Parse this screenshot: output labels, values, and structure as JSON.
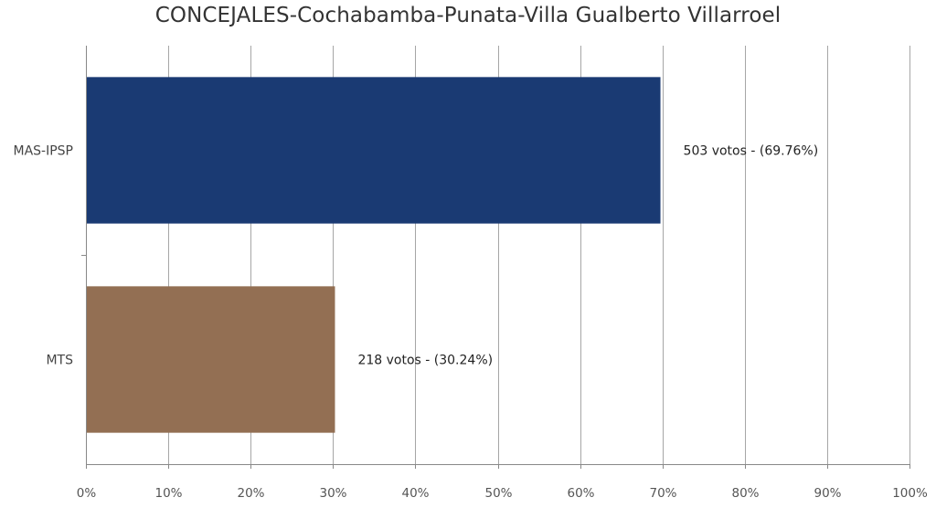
{
  "chart_data": {
    "type": "bar",
    "orientation": "horizontal",
    "title": "CONCEJALES-Cochabamba-Punata-Villa Gualberto Villarroel",
    "categories": [
      "MAS-IPSP",
      "MTS"
    ],
    "values": [
      69.76,
      30.24
    ],
    "votes": [
      503,
      218
    ],
    "data_labels": [
      "503 votos - (69.76%)",
      "218 votos - (30.24%)"
    ],
    "colors": [
      "#1a3a73",
      "#936f53"
    ],
    "xlim": [
      0,
      100
    ],
    "x_ticks": [
      0,
      10,
      20,
      30,
      40,
      50,
      60,
      70,
      80,
      90,
      100
    ],
    "x_tick_labels": [
      "0%",
      "10%",
      "20%",
      "30%",
      "40%",
      "50%",
      "60%",
      "70%",
      "80%",
      "90%",
      "100%"
    ],
    "grid": true,
    "legend": "none",
    "xlabel": "",
    "ylabel": ""
  }
}
